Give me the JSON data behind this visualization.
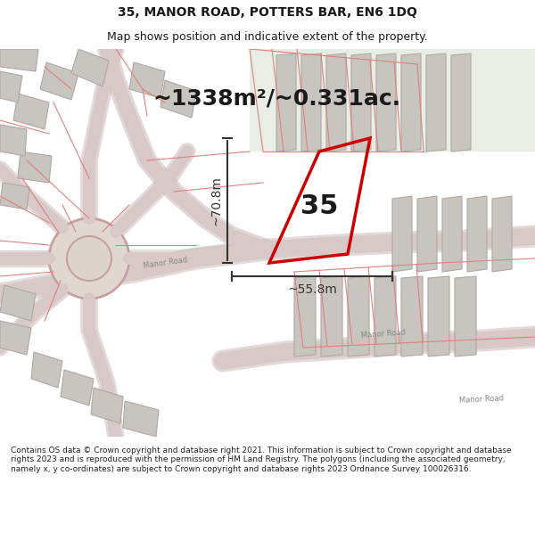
{
  "title_line1": "35, MANOR ROAD, POTTERS BAR, EN6 1DQ",
  "title_line2": "Map shows position and indicative extent of the property.",
  "area_text": "~1338m²/~0.331ac.",
  "dim_height": "~70.8m",
  "dim_width": "~55.8m",
  "plot_number": "35",
  "footer_text": "Contains OS data © Crown copyright and database right 2021. This information is subject to Crown copyright and database rights 2023 and is reproduced with the permission of HM Land Registry. The polygons (including the associated geometry, namely x, y co-ordinates) are subject to Crown copyright and database rights 2023 Ordnance Survey 100026316.",
  "bg_color": "#f0ede8",
  "map_bg": "#f5f2ee",
  "road_color": "#e8c8c8",
  "road_fill": "#e0d0d0",
  "plot_color": "#cc0000",
  "dim_color": "#333333",
  "text_color": "#1a1a1a",
  "greenish_bg": "#e8ede8",
  "header_bg": "#ffffff",
  "footer_bg": "#ffffff"
}
